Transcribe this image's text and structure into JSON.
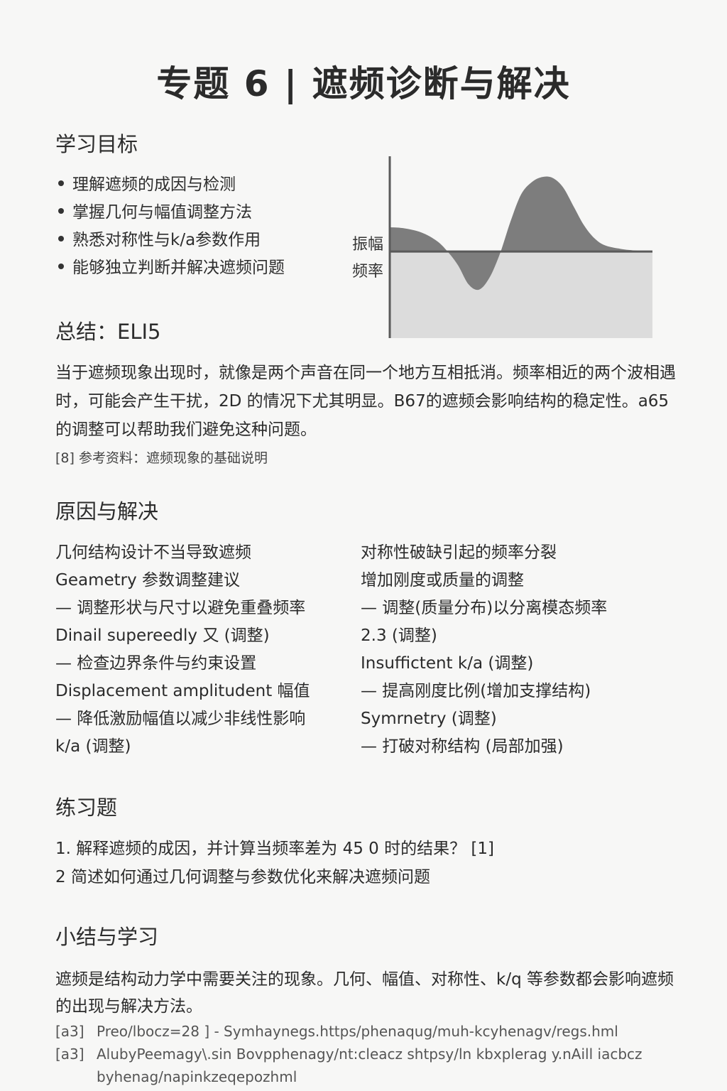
{
  "title": "专题 6 | 遮频诊断与解决",
  "sections": {
    "objectives": "学习目标",
    "eli5": "总结：ELI5",
    "causes": "原因与解决",
    "exercises": "练习题",
    "summary": "小结与学习"
  },
  "objectives": [
    "理解遮频的成因与检测",
    "掌握几何与幅值调整方法",
    "熟悉对称性与k/a参数作用",
    "能够独立判断并解决遮频问题"
  ],
  "side_labels": [
    "振幅",
    "频率"
  ],
  "chart_data": {
    "type": "area",
    "title": "",
    "xlabel": "",
    "ylabel": "",
    "baseline": 0,
    "x": [
      0,
      0.05,
      0.12,
      0.18,
      0.22,
      0.26,
      0.3,
      0.34,
      0.38,
      0.42,
      0.46,
      0.5,
      0.54,
      0.58,
      0.62,
      0.66,
      0.7,
      0.74,
      0.78,
      0.82,
      0.88,
      0.94,
      1.0
    ],
    "y": [
      0.28,
      0.27,
      0.22,
      0.12,
      0.0,
      -0.16,
      -0.38,
      -0.44,
      -0.3,
      -0.02,
      0.35,
      0.66,
      0.8,
      0.86,
      0.85,
      0.74,
      0.52,
      0.3,
      0.15,
      0.07,
      0.03,
      0.01,
      0.0
    ],
    "ylim": [
      -1,
      1.1
    ],
    "grid": false,
    "colors": {
      "area": "#7d7d7d",
      "below_fill": "#dcdcdc",
      "axis": "#5a5a5a"
    }
  },
  "eli5_paragraph": "当于遮频现象出现时，就像是两个声音在同一个地方互相抵消。频率相近的两个波相遇时，可能会产生干扰，2D 的情况下尤其明显。B67的遮频会影响结构的稳定性。a65的调整可以帮助我们避免这种问题。",
  "eli5_ref": "[8] 参考资料：遮频现象的基础说明",
  "causes_left": [
    "几何结构设计不当导致遮频",
    "Geametry 参数调整建议",
    "— 调整形状与尺寸以避免重叠频率",
    "Dinail supereedly 又 (调整)",
    "— 检查边界条件与约束设置",
    "Displacement amplitudent 幅值",
    "— 降低激励幅值以减少非线性影响",
    "k/a (调整)"
  ],
  "causes_right": [
    "对称性破缺引起的频率分裂",
    "增加刚度或质量的调整",
    "— 调整(质量分布)以分离模态频率",
    "2.3 (调整)",
    "Insuffictent k/a (调整)",
    "— 提高刚度比例(增加支撑结构)",
    "Symrnetry (调整)",
    "— 打破对称结构 (局部加强)"
  ],
  "exercise_items": [
    "1.  解释遮频的成因，并计算当频率差为 45 0 时的结果？ [1]",
    "2   简述如何通过几何调整与参数优化来解决遮频问题"
  ],
  "summary_paragraph": "遮频是结构动力学中需要关注的现象。几何、幅值、对称性、k/q 等参数都会影响遮频的出现与解决方法。",
  "references": [
    {
      "num": "[a3]",
      "text": "Preo/lbocz=28 ] - Symhaynegs.https/phenaqug/muh-kcyhenagv/regs.hml"
    },
    {
      "num": "[a3]",
      "text": "AlubyPeemagy\\.sin Bovpphenagy/nt:cleacz shtpsy/ln kbxplerag y.nAill iacbcz"
    },
    {
      "num": "",
      "text": "byhenag/napinkzeqepozhml"
    }
  ]
}
